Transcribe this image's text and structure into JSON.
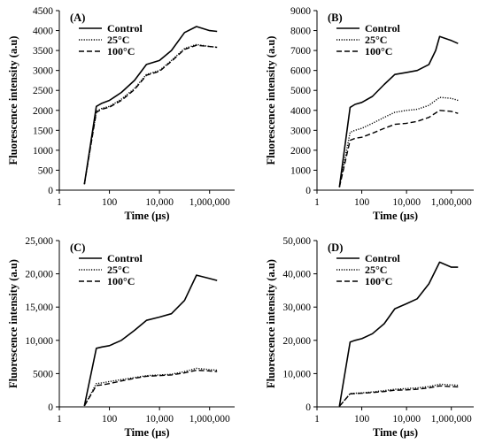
{
  "figure": {
    "styles": {
      "Control": "solid",
      "25°C": "dotted",
      "100°C": "dashed"
    },
    "line_color": "#000000"
  },
  "chart_data": [
    {
      "type": "line",
      "panel_label": "(A)",
      "xlabel": "Time (µs)",
      "ylabel": "Fluorescence intensity (a.u)",
      "xscale": "log",
      "xlim": [
        1,
        10000000
      ],
      "xticks": [
        1,
        100,
        10000,
        1000000
      ],
      "xtick_labels": [
        "1",
        "100",
        "10,000",
        "1,000,000"
      ],
      "ylim": [
        0,
        4500
      ],
      "yticks": [
        0,
        500,
        1000,
        1500,
        2000,
        2500,
        3000,
        3500,
        4000,
        4500
      ],
      "ytick_labels": [
        "0",
        "500",
        "1000",
        "1500",
        "2000",
        "2500",
        "3000",
        "3500",
        "4000",
        "4500"
      ],
      "legend": {
        "position": "top-left",
        "entries": [
          "Control",
          "25°C",
          "100°C"
        ]
      },
      "grid": false,
      "series": [
        {
          "name": "Control",
          "style": "solid",
          "x": [
            10,
            30,
            50,
            100,
            300,
            1000,
            3000,
            10000,
            30000,
            100000,
            300000,
            1000000,
            2000000
          ],
          "y": [
            150,
            2100,
            2180,
            2250,
            2450,
            2750,
            3150,
            3250,
            3500,
            3950,
            4100,
            4000,
            3980
          ]
        },
        {
          "name": "25°C",
          "style": "dotted",
          "x": [
            10,
            30,
            50,
            100,
            300,
            1000,
            3000,
            10000,
            30000,
            100000,
            300000,
            1000000,
            2000000
          ],
          "y": [
            150,
            1980,
            2050,
            2100,
            2280,
            2550,
            2900,
            3000,
            3250,
            3550,
            3650,
            3600,
            3580
          ]
        },
        {
          "name": "100°C",
          "style": "dashed",
          "x": [
            10,
            30,
            50,
            100,
            300,
            1000,
            3000,
            10000,
            30000,
            100000,
            300000,
            1000000,
            2000000
          ],
          "y": [
            150,
            1950,
            2030,
            2080,
            2250,
            2520,
            2880,
            2980,
            3230,
            3530,
            3630,
            3600,
            3580
          ]
        }
      ]
    },
    {
      "type": "line",
      "panel_label": "(B)",
      "xlabel": "Time (µs)",
      "ylabel": "Fluorescence intensity (a.u)",
      "xscale": "log",
      "xlim": [
        1,
        10000000
      ],
      "xticks": [
        1,
        100,
        10000,
        1000000
      ],
      "xtick_labels": [
        "1",
        "100",
        "10,000",
        "1,000,000"
      ],
      "ylim": [
        0,
        9000
      ],
      "yticks": [
        0,
        1000,
        2000,
        3000,
        4000,
        5000,
        6000,
        7000,
        8000,
        9000
      ],
      "ytick_labels": [
        "0",
        "1000",
        "2000",
        "3000",
        "4000",
        "5000",
        "6000",
        "7000",
        "8000",
        "9000"
      ],
      "legend": {
        "position": "top-left",
        "entries": [
          "Control",
          "25°C",
          "100°C"
        ]
      },
      "grid": false,
      "series": [
        {
          "name": "Control",
          "style": "solid",
          "x": [
            10,
            30,
            50,
            100,
            300,
            1000,
            3000,
            10000,
            30000,
            100000,
            200000,
            300000,
            1000000,
            2000000
          ],
          "y": [
            150,
            4150,
            4300,
            4400,
            4700,
            5300,
            5800,
            5900,
            6000,
            6300,
            7000,
            7700,
            7500,
            7350
          ]
        },
        {
          "name": "25°C",
          "style": "dotted",
          "x": [
            10,
            30,
            50,
            100,
            300,
            1000,
            3000,
            10000,
            30000,
            100000,
            300000,
            1000000,
            2000000
          ],
          "y": [
            150,
            2900,
            3000,
            3100,
            3350,
            3650,
            3900,
            4000,
            4050,
            4250,
            4650,
            4600,
            4500
          ]
        },
        {
          "name": "100°C",
          "style": "dashed",
          "x": [
            10,
            30,
            50,
            100,
            300,
            1000,
            3000,
            10000,
            30000,
            100000,
            300000,
            1000000,
            2000000
          ],
          "y": [
            150,
            2500,
            2600,
            2650,
            2850,
            3100,
            3300,
            3350,
            3450,
            3650,
            4000,
            3950,
            3850
          ]
        }
      ]
    },
    {
      "type": "line",
      "panel_label": "(C)",
      "xlabel": "Time (µs)",
      "ylabel": "Fluorescence intensity (a.u)",
      "xscale": "log",
      "xlim": [
        1,
        10000000
      ],
      "xticks": [
        1,
        100,
        10000,
        1000000
      ],
      "xtick_labels": [
        "1",
        "100",
        "10,000",
        "1,000,000"
      ],
      "ylim": [
        0,
        25000
      ],
      "yticks": [
        0,
        5000,
        10000,
        15000,
        20000,
        25000
      ],
      "ytick_labels": [
        "0",
        "5000",
        "10,000",
        "15,000",
        "20,000",
        "25,000"
      ],
      "legend": {
        "position": "top-left",
        "entries": [
          "Control",
          "25°C",
          "100°C"
        ]
      },
      "grid": false,
      "series": [
        {
          "name": "Control",
          "style": "solid",
          "x": [
            10,
            30,
            50,
            100,
            300,
            1000,
            3000,
            10000,
            30000,
            100000,
            300000,
            1000000,
            2000000
          ],
          "y": [
            150,
            8800,
            9000,
            9200,
            10000,
            11500,
            13000,
            13500,
            14000,
            16000,
            19800,
            19300,
            19000
          ]
        },
        {
          "name": "25°C",
          "style": "dotted",
          "x": [
            10,
            30,
            50,
            100,
            300,
            1000,
            3000,
            10000,
            30000,
            100000,
            300000,
            1000000,
            2000000
          ],
          "y": [
            150,
            3500,
            3600,
            3800,
            4100,
            4400,
            4700,
            4800,
            4900,
            5300,
            5800,
            5600,
            5500
          ]
        },
        {
          "name": "100°C",
          "style": "dashed",
          "x": [
            10,
            30,
            50,
            100,
            300,
            1000,
            3000,
            10000,
            30000,
            100000,
            300000,
            1000000,
            2000000
          ],
          "y": [
            150,
            3200,
            3300,
            3500,
            3900,
            4300,
            4600,
            4700,
            4800,
            5100,
            5500,
            5400,
            5300
          ]
        }
      ]
    },
    {
      "type": "line",
      "panel_label": "(D)",
      "xlabel": "Time (µs)",
      "ylabel": "Fluorescence intensity (a.u)",
      "xscale": "log",
      "xlim": [
        1,
        10000000
      ],
      "xticks": [
        1,
        100,
        10000,
        1000000
      ],
      "xtick_labels": [
        "1",
        "100",
        "10,000",
        "1,000,000"
      ],
      "ylim": [
        0,
        50000
      ],
      "yticks": [
        0,
        10000,
        20000,
        30000,
        40000,
        50000
      ],
      "ytick_labels": [
        "0",
        "10,000",
        "20,000",
        "30,000",
        "40,000",
        "50,000"
      ],
      "legend": {
        "position": "top-left",
        "entries": [
          "Control",
          "25°C",
          "100°C"
        ]
      },
      "grid": false,
      "series": [
        {
          "name": "Control",
          "style": "solid",
          "x": [
            10,
            30,
            50,
            100,
            300,
            1000,
            3000,
            10000,
            30000,
            100000,
            300000,
            1000000,
            2000000
          ],
          "y": [
            150,
            19500,
            20000,
            20500,
            22000,
            25000,
            29500,
            31000,
            32500,
            37000,
            43500,
            42000,
            42000
          ]
        },
        {
          "name": "25°C",
          "style": "dotted",
          "x": [
            10,
            30,
            50,
            100,
            300,
            1000,
            3000,
            10000,
            30000,
            100000,
            300000,
            1000000,
            2000000
          ],
          "y": [
            150,
            4000,
            4100,
            4200,
            4500,
            4900,
            5300,
            5500,
            5700,
            6100,
            6800,
            6600,
            6500
          ]
        },
        {
          "name": "100°C",
          "style": "dashed",
          "x": [
            10,
            30,
            50,
            100,
            300,
            1000,
            3000,
            10000,
            30000,
            100000,
            300000,
            1000000,
            2000000
          ],
          "y": [
            150,
            3900,
            4000,
            4100,
            4300,
            4600,
            5000,
            5100,
            5300,
            5700,
            6300,
            6100,
            6000
          ]
        }
      ]
    }
  ]
}
